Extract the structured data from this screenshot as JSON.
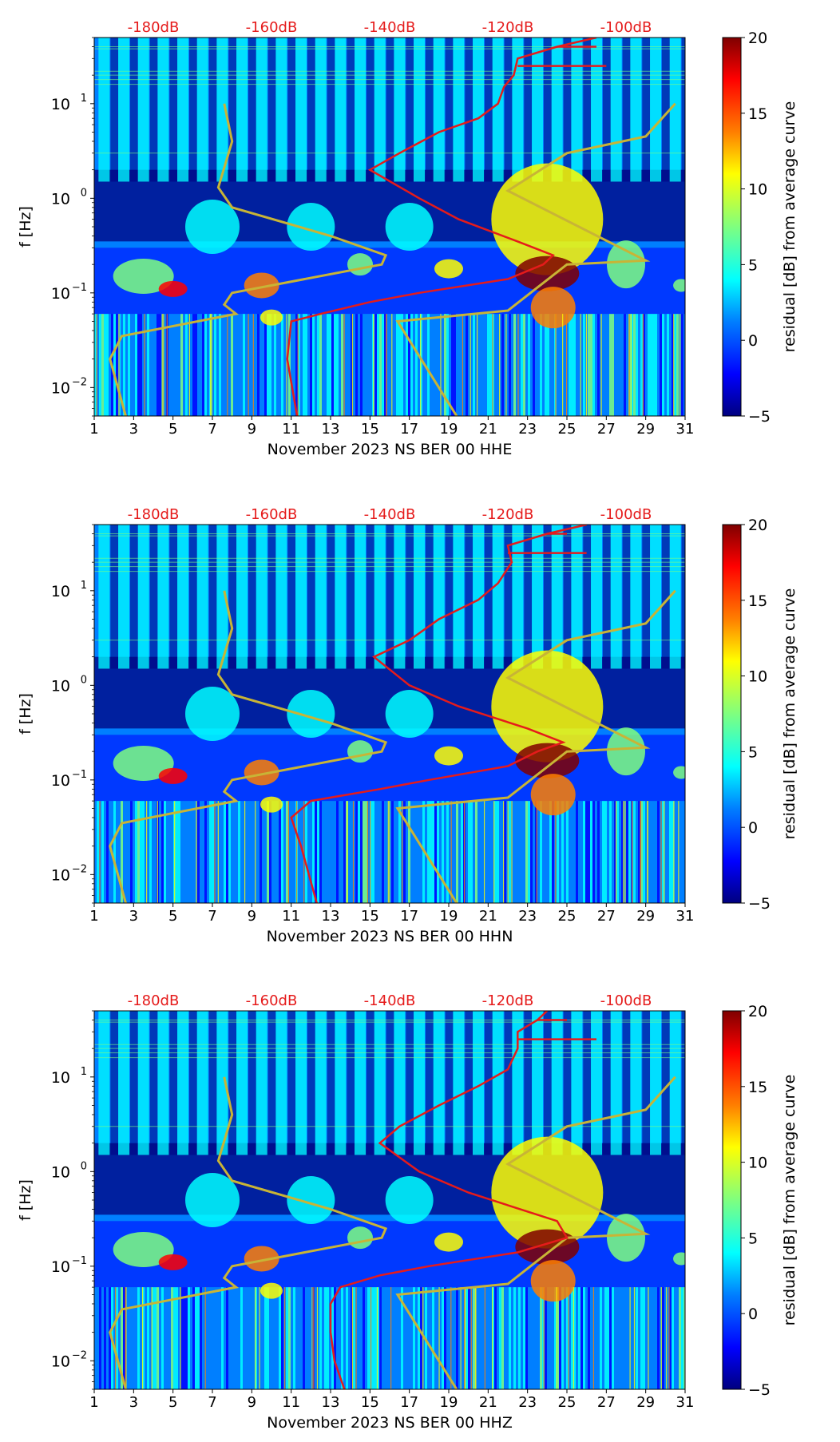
{
  "figure": {
    "colormap_colors": [
      "#00007f",
      "#0000ff",
      "#007fff",
      "#00ffff",
      "#7fff7f",
      "#ffff00",
      "#ff7f00",
      "#ff0000",
      "#7f0000"
    ],
    "gold_color": "#c8b436",
    "red_color": "#e51b1b"
  },
  "chart_data": [
    {
      "type": "heatmap",
      "xlabel": "November 2023 NS BER 00 HHE",
      "ylabel": "f [Hz]",
      "x_ticks": [
        "1",
        "3",
        "5",
        "7",
        "9",
        "11",
        "13",
        "15",
        "17",
        "19",
        "21",
        "23",
        "25",
        "27",
        "29",
        "31"
      ],
      "xlim": [
        1,
        31
      ],
      "ylim": [
        0.005,
        50
      ],
      "y_scale": "log",
      "y_ticks": [
        {
          "value": 0.01,
          "base": "10",
          "exp": "−2"
        },
        {
          "value": 0.1,
          "base": "10",
          "exp": "−1"
        },
        {
          "value": 1,
          "base": "10",
          "exp": "0"
        },
        {
          "value": 10,
          "base": "10",
          "exp": "1"
        }
      ],
      "top_axis_labels": [
        "-180dB",
        "-160dB",
        "-140dB",
        "-120dB",
        "-100dB"
      ],
      "colorbar": {
        "label": "residual [dB] from average curve",
        "range": [
          -5,
          20
        ],
        "ticks": [
          "−5",
          "0",
          "5",
          "10",
          "15",
          "20"
        ]
      },
      "noise_model_low": [
        [
          0.005,
          2.6
        ],
        [
          0.02,
          1.8
        ],
        [
          0.035,
          2.4
        ],
        [
          0.06,
          8.2
        ],
        [
          0.075,
          7.6
        ],
        [
          0.1,
          8.0
        ],
        [
          0.2,
          15.6
        ],
        [
          0.25,
          15.8
        ],
        [
          0.4,
          13.0
        ],
        [
          0.8,
          8.0
        ],
        [
          1.3,
          7.3
        ],
        [
          4,
          8.0
        ],
        [
          10,
          7.6
        ]
      ],
      "noise_model_high": [
        [
          0.005,
          19.4
        ],
        [
          0.05,
          16.4
        ],
        [
          0.065,
          22.0
        ],
        [
          0.2,
          25.0
        ],
        [
          0.22,
          29.0
        ],
        [
          1.2,
          22.0
        ],
        [
          3,
          25.0
        ],
        [
          4.5,
          29.0
        ],
        [
          10,
          30.5
        ]
      ],
      "median_psd": [
        [
          0.005,
          11.3
        ],
        [
          0.02,
          10.8
        ],
        [
          0.05,
          11.0
        ],
        [
          0.06,
          12.5
        ],
        [
          0.08,
          15.0
        ],
        [
          0.1,
          17.5
        ],
        [
          0.14,
          22.0
        ],
        [
          0.2,
          23.8
        ],
        [
          0.25,
          24.3
        ],
        [
          0.35,
          22.5
        ],
        [
          0.6,
          19.5
        ],
        [
          1,
          17.5
        ],
        [
          2,
          15.0
        ],
        [
          3,
          16.5
        ],
        [
          5,
          18.5
        ],
        [
          7,
          20.5
        ],
        [
          10,
          21.5
        ],
        [
          15,
          21.8
        ],
        [
          20,
          22.3
        ],
        [
          30,
          22.5
        ],
        [
          40,
          24.5
        ],
        [
          50,
          26.5
        ]
      ],
      "median_spikes": [
        [
          25,
          27.0
        ],
        [
          40,
          26.5
        ]
      ]
    },
    {
      "type": "heatmap",
      "xlabel": "November 2023 NS BER 00 HHN",
      "ylabel": "f [Hz]",
      "x_ticks": [
        "1",
        "3",
        "5",
        "7",
        "9",
        "11",
        "13",
        "15",
        "17",
        "19",
        "21",
        "23",
        "25",
        "27",
        "29",
        "31"
      ],
      "xlim": [
        1,
        31
      ],
      "ylim": [
        0.005,
        50
      ],
      "y_scale": "log",
      "y_ticks": [
        {
          "value": 0.01,
          "base": "10",
          "exp": "−2"
        },
        {
          "value": 0.1,
          "base": "10",
          "exp": "−1"
        },
        {
          "value": 1,
          "base": "10",
          "exp": "0"
        },
        {
          "value": 10,
          "base": "10",
          "exp": "1"
        }
      ],
      "top_axis_labels": [
        "-180dB",
        "-160dB",
        "-140dB",
        "-120dB",
        "-100dB"
      ],
      "colorbar": {
        "label": "residual [dB] from average curve",
        "range": [
          -5,
          20
        ],
        "ticks": [
          "−5",
          "0",
          "5",
          "10",
          "15",
          "20"
        ]
      },
      "noise_model_low": [
        [
          0.005,
          2.6
        ],
        [
          0.02,
          1.8
        ],
        [
          0.035,
          2.4
        ],
        [
          0.06,
          8.2
        ],
        [
          0.075,
          7.6
        ],
        [
          0.1,
          8.0
        ],
        [
          0.2,
          15.6
        ],
        [
          0.25,
          15.8
        ],
        [
          0.4,
          13.0
        ],
        [
          0.8,
          8.0
        ],
        [
          1.3,
          7.3
        ],
        [
          4,
          8.0
        ],
        [
          10,
          7.6
        ]
      ],
      "noise_model_high": [
        [
          0.005,
          19.4
        ],
        [
          0.05,
          16.4
        ],
        [
          0.065,
          22.0
        ],
        [
          0.2,
          25.0
        ],
        [
          0.22,
          29.0
        ],
        [
          1.2,
          22.0
        ],
        [
          3,
          25.0
        ],
        [
          4.5,
          29.0
        ],
        [
          10,
          30.5
        ]
      ],
      "median_psd": [
        [
          0.005,
          12.3
        ],
        [
          0.02,
          11.5
        ],
        [
          0.04,
          11.0
        ],
        [
          0.06,
          12.0
        ],
        [
          0.08,
          15.5
        ],
        [
          0.1,
          18.0
        ],
        [
          0.14,
          22.0
        ],
        [
          0.2,
          23.5
        ],
        [
          0.25,
          24.8
        ],
        [
          0.35,
          23.0
        ],
        [
          0.6,
          19.5
        ],
        [
          1,
          17.0
        ],
        [
          2,
          15.2
        ],
        [
          3,
          17.0
        ],
        [
          5,
          18.5
        ],
        [
          8,
          20.5
        ],
        [
          12,
          21.5
        ],
        [
          20,
          22.2
        ],
        [
          30,
          22.0
        ],
        [
          40,
          24.0
        ],
        [
          50,
          26.0
        ]
      ],
      "median_spikes": [
        [
          25,
          26.0
        ],
        [
          40,
          25.0
        ]
      ]
    },
    {
      "type": "heatmap",
      "xlabel": "November 2023 NS BER 00 HHZ",
      "ylabel": "f [Hz]",
      "x_ticks": [
        "1",
        "3",
        "5",
        "7",
        "9",
        "11",
        "13",
        "15",
        "17",
        "19",
        "21",
        "23",
        "25",
        "27",
        "29",
        "31"
      ],
      "xlim": [
        1,
        31
      ],
      "ylim": [
        0.005,
        50
      ],
      "y_scale": "log",
      "y_ticks": [
        {
          "value": 0.01,
          "base": "10",
          "exp": "−2"
        },
        {
          "value": 0.1,
          "base": "10",
          "exp": "−1"
        },
        {
          "value": 1,
          "base": "10",
          "exp": "0"
        },
        {
          "value": 10,
          "base": "10",
          "exp": "1"
        }
      ],
      "top_axis_labels": [
        "-180dB",
        "-160dB",
        "-140dB",
        "-120dB",
        "-100dB"
      ],
      "colorbar": {
        "label": "residual [dB] from average curve",
        "range": [
          -5,
          20
        ],
        "ticks": [
          "−5",
          "0",
          "5",
          "10",
          "15",
          "20"
        ]
      },
      "noise_model_low": [
        [
          0.005,
          2.6
        ],
        [
          0.02,
          1.8
        ],
        [
          0.035,
          2.4
        ],
        [
          0.06,
          8.2
        ],
        [
          0.075,
          7.6
        ],
        [
          0.1,
          8.0
        ],
        [
          0.2,
          15.6
        ],
        [
          0.25,
          15.8
        ],
        [
          0.4,
          13.0
        ],
        [
          0.8,
          8.0
        ],
        [
          1.3,
          7.3
        ],
        [
          4,
          8.0
        ],
        [
          10,
          7.6
        ]
      ],
      "noise_model_high": [
        [
          0.005,
          19.4
        ],
        [
          0.05,
          16.4
        ],
        [
          0.065,
          22.0
        ],
        [
          0.2,
          25.0
        ],
        [
          0.22,
          29.0
        ],
        [
          1.2,
          22.0
        ],
        [
          3,
          25.0
        ],
        [
          4.5,
          29.0
        ],
        [
          10,
          30.5
        ]
      ],
      "median_psd": [
        [
          0.005,
          13.7
        ],
        [
          0.01,
          13.2
        ],
        [
          0.02,
          13.0
        ],
        [
          0.04,
          13.0
        ],
        [
          0.06,
          13.5
        ],
        [
          0.08,
          15.5
        ],
        [
          0.1,
          18.0
        ],
        [
          0.14,
          22.5
        ],
        [
          0.2,
          25.0
        ],
        [
          0.3,
          24.5
        ],
        [
          0.6,
          20.0
        ],
        [
          1,
          17.5
        ],
        [
          2,
          15.5
        ],
        [
          3,
          16.5
        ],
        [
          5,
          18.5
        ],
        [
          8,
          20.5
        ],
        [
          12,
          22.0
        ],
        [
          20,
          22.5
        ],
        [
          30,
          22.5
        ],
        [
          40,
          23.5
        ],
        [
          50,
          24.0
        ]
      ],
      "median_spikes": [
        [
          25,
          26.5
        ],
        [
          40,
          25.0
        ]
      ]
    }
  ]
}
